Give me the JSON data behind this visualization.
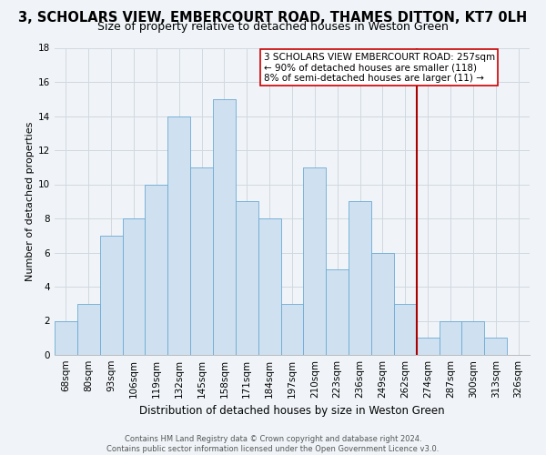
{
  "title": "3, SCHOLARS VIEW, EMBERCOURT ROAD, THAMES DITTON, KT7 0LH",
  "subtitle": "Size of property relative to detached houses in Weston Green",
  "xlabel": "Distribution of detached houses by size in Weston Green",
  "ylabel": "Number of detached properties",
  "bar_labels": [
    "68sqm",
    "80sqm",
    "93sqm",
    "106sqm",
    "119sqm",
    "132sqm",
    "145sqm",
    "158sqm",
    "171sqm",
    "184sqm",
    "197sqm",
    "210sqm",
    "223sqm",
    "236sqm",
    "249sqm",
    "262sqm",
    "274sqm",
    "287sqm",
    "300sqm",
    "313sqm",
    "326sqm"
  ],
  "bar_values": [
    2,
    3,
    7,
    8,
    10,
    14,
    11,
    15,
    9,
    8,
    3,
    11,
    5,
    9,
    6,
    3,
    1,
    2,
    2,
    1,
    0
  ],
  "bar_color": "#cfe0f0",
  "bar_edge_color": "#6aaad4",
  "grid_color": "#d0d8e0",
  "background_color": "#f0f4f8",
  "vline_x": 15.5,
  "vline_color": "#aa0000",
  "annotation_line1": "3 SCHOLARS VIEW EMBERCOURT ROAD: 257sqm",
  "annotation_line2": "← 90% of detached houses are smaller (118)",
  "annotation_line3": "8% of semi-detached houses are larger (11) →",
  "annotation_box_color": "#ffffff",
  "annotation_box_edge": "#cc0000",
  "footer_line1": "Contains HM Land Registry data © Crown copyright and database right 2024.",
  "footer_line2": "Contains public sector information licensed under the Open Government Licence v3.0.",
  "ylim": [
    0,
    18
  ],
  "yticks": [
    0,
    2,
    4,
    6,
    8,
    10,
    12,
    14,
    16,
    18
  ],
  "title_fontsize": 10.5,
  "subtitle_fontsize": 9,
  "xlabel_fontsize": 8.5,
  "ylabel_fontsize": 8,
  "tick_fontsize": 7.5,
  "annotation_fontsize": 7.5,
  "footer_fontsize": 6
}
